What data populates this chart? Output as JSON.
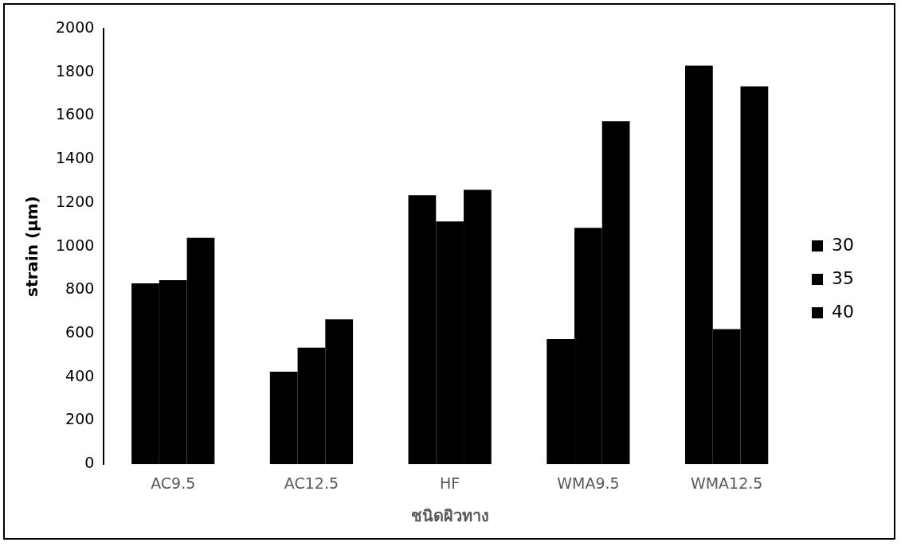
{
  "chart_data": {
    "type": "bar",
    "xlabel": "ชนิดผิวทาง",
    "ylabel": "strain (µm)",
    "categories": [
      "AC9.5",
      "AC12.5",
      "HF",
      "WMA9.5",
      "WMA12.5"
    ],
    "series": [
      {
        "name": "30",
        "color": "#000000",
        "values": [
          830,
          425,
          1235,
          575,
          1830
        ]
      },
      {
        "name": "35",
        "color": "#000000",
        "values": [
          845,
          535,
          1115,
          1085,
          620
        ]
      },
      {
        "name": "40",
        "color": "#000000",
        "values": [
          1040,
          665,
          1260,
          1575,
          1735
        ]
      }
    ],
    "ylim": [
      0,
      2000
    ],
    "yticks": [
      0,
      200,
      400,
      600,
      800,
      1000,
      1200,
      1400,
      1600,
      1800,
      2000
    ],
    "grid": false,
    "legend": "right"
  }
}
